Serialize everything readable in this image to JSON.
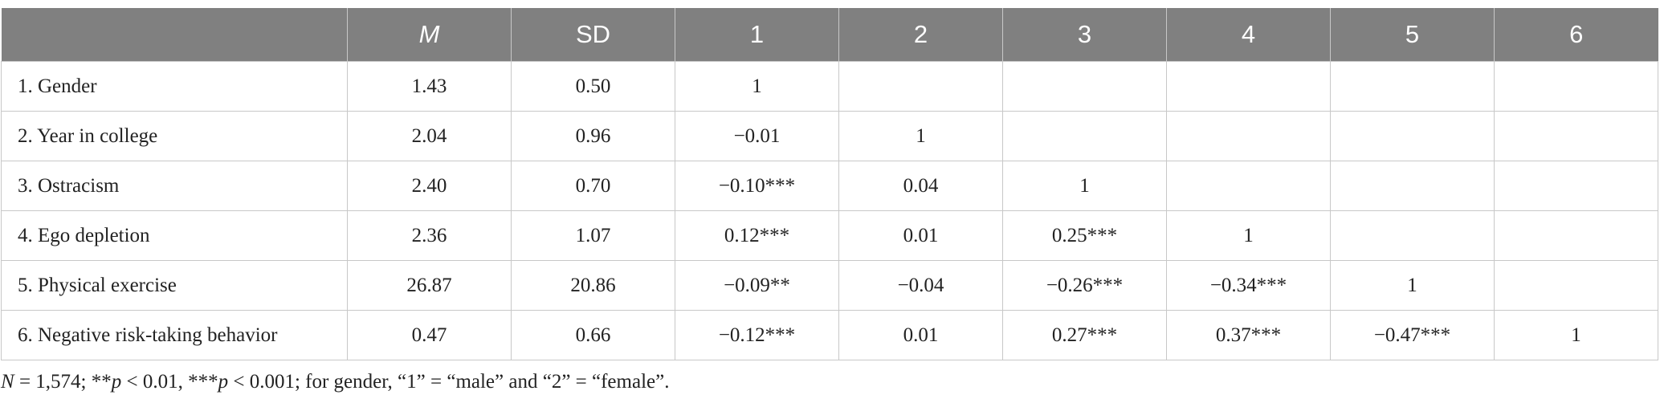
{
  "table": {
    "header": [
      "M",
      "SD",
      "1",
      "2",
      "3",
      "4",
      "5",
      "6"
    ],
    "header_italic": [
      true,
      false,
      false,
      false,
      false,
      false,
      false,
      false
    ],
    "rows": [
      [
        "1. Gender",
        "1.43",
        "0.50",
        "1"
      ],
      [
        "2. Year in college",
        "2.04",
        "0.96",
        "−0.01",
        "1"
      ],
      [
        "3. Ostracism",
        "2.40",
        "0.70",
        "−0.10***",
        "0.04",
        "1"
      ],
      [
        "4. Ego depletion",
        "2.36",
        "1.07",
        "0.12***",
        "0.01",
        "0.25***",
        "1"
      ],
      [
        "5. Physical exercise",
        "26.87",
        "20.86",
        "−0.09**",
        "−0.04",
        "−0.26***",
        "−0.34***",
        "1"
      ],
      [
        "6. Negative risk-taking behavior",
        "0.47",
        "0.66",
        "−0.12***",
        "0.01",
        "0.27***",
        "0.37***",
        "−0.47***",
        "1"
      ]
    ]
  },
  "footnote": [
    {
      "text": "N",
      "italic": true
    },
    {
      "text": " = 1,574; **",
      "italic": false
    },
    {
      "text": "p",
      "italic": true
    },
    {
      "text": " < 0.01, ***",
      "italic": false
    },
    {
      "text": "p",
      "italic": true
    },
    {
      "text": " < 0.001; for gender, “1” = “male” and “2” = “female”.",
      "italic": false
    }
  ]
}
